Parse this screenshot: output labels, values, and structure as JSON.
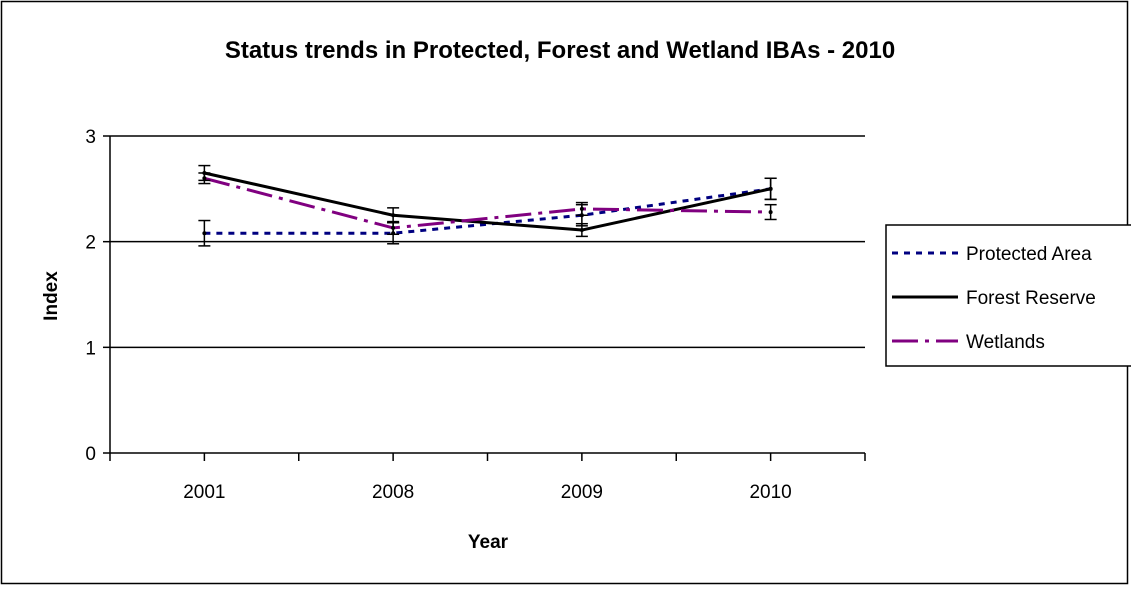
{
  "chart_data": {
    "type": "line",
    "title": "Status trends in Protected, Forest and Wetland IBAs - 2010",
    "xlabel": "Year",
    "ylabel": "Index",
    "categories": [
      "2001",
      "2008",
      "2009",
      "2010"
    ],
    "ylim": [
      0,
      3
    ],
    "yticks": [
      0,
      1,
      2,
      3
    ],
    "ytick_labels": [
      "0",
      "1",
      "2",
      "3"
    ],
    "grid": true,
    "legend_position": "right",
    "series": [
      {
        "name": "Protected Area",
        "values": [
          2.08,
          2.08,
          2.25,
          2.5
        ],
        "errors": [
          0.12,
          0.1,
          0.1,
          0.1
        ],
        "color": "#000080",
        "dash": "dotted"
      },
      {
        "name": "Forest Reserve",
        "values": [
          2.65,
          2.25,
          2.11,
          2.5
        ],
        "errors": [
          0.07,
          0.07,
          0.06,
          0.1
        ],
        "color": "#000000",
        "dash": "solid"
      },
      {
        "name": "Wetlands",
        "values": [
          2.6,
          2.13,
          2.31,
          2.28
        ],
        "errors": [
          0.05,
          0.06,
          0.06,
          0.07
        ],
        "color": "#800080",
        "dash": "dash-dot"
      }
    ]
  }
}
